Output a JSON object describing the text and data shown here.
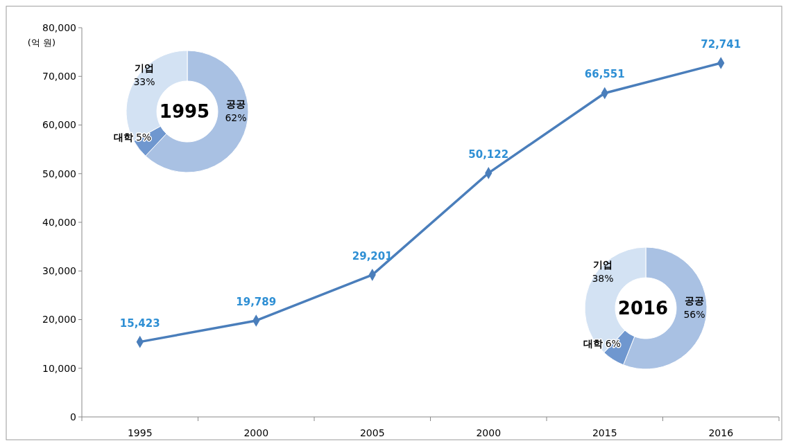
{
  "chart_data": [
    {
      "type": "line",
      "ylabel": "(억 원)",
      "categories": [
        "1995",
        "2000",
        "2005",
        "2000",
        "2015",
        "2016"
      ],
      "series": [
        {
          "color": "#4a7ebb",
          "values": [
            15423,
            19789,
            29201,
            50122,
            66551,
            72741
          ]
        }
      ],
      "ylim": [
        0,
        80000
      ],
      "yticks": [
        0,
        {
          "value": 10000,
          "label": "10,000"
        },
        {
          "value": 20000,
          "label": "20,000"
        },
        {
          "value": 30000,
          "label": "30,000"
        },
        {
          "value": 40000,
          "label": "40,000"
        },
        {
          "value": 50000,
          "label": "50,000"
        },
        {
          "value": 60000,
          "label": "60,000"
        },
        {
          "value": 70000,
          "label": "70,000"
        },
        {
          "value": 80000,
          "label": "80,000"
        }
      ],
      "value_labels": [
        "15,423",
        "19,789",
        "29,201",
        "50,122",
        "66,551",
        "72,741"
      ],
      "marker": "diamond",
      "grid": false
    },
    {
      "type": "donut",
      "title": "1995",
      "categories": [
        "공공",
        "대학",
        "기업"
      ],
      "values": [
        62,
        5,
        33
      ],
      "colors": [
        "#a9c1e3",
        "#6f97cf",
        "#d3e2f3"
      ],
      "value_labels": [
        "62%",
        "5%",
        "33%"
      ]
    },
    {
      "type": "donut",
      "title": "2016",
      "categories": [
        "공공",
        "대학",
        "기업"
      ],
      "values": [
        56,
        6,
        38
      ],
      "colors": [
        "#a9c1e3",
        "#6f97cf",
        "#d3e2f3"
      ],
      "value_labels": [
        "56%",
        "6%",
        "38%"
      ]
    }
  ]
}
